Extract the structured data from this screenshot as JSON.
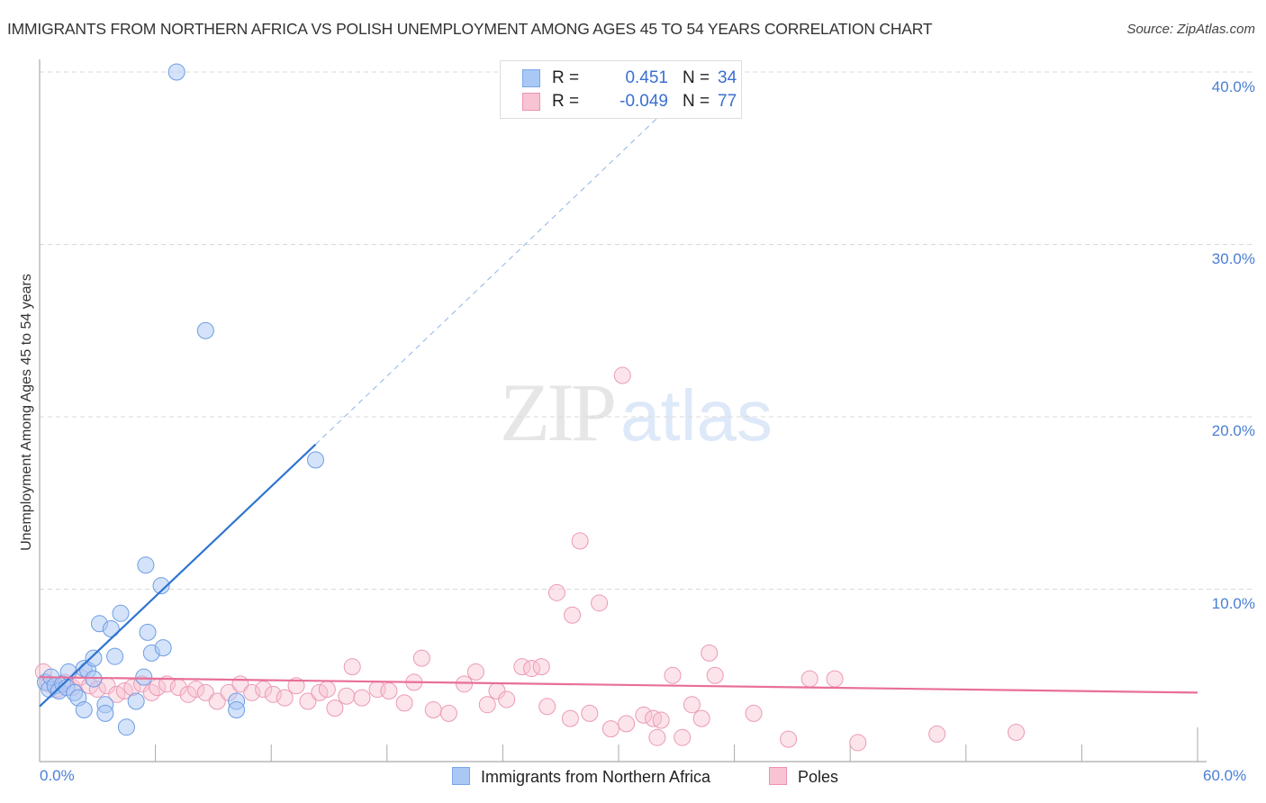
{
  "header": {
    "title": "IMMIGRANTS FROM NORTHERN AFRICA VS POLISH UNEMPLOYMENT AMONG AGES 45 TO 54 YEARS CORRELATION CHART",
    "source": "Source: ZipAtlas.com"
  },
  "watermark": {
    "zip": "ZIP",
    "atlas": "atlas"
  },
  "axes": {
    "ylabel": "Unemployment Among Ages 45 to 54 years",
    "y_ticks": [
      "40.0%",
      "30.0%",
      "20.0%",
      "10.0%"
    ],
    "x_ticks": [
      "0.0%",
      "60.0%"
    ]
  },
  "legend_box": {
    "rows": [
      {
        "r_label": "R =",
        "r_value": "0.451",
        "n_label": "N =",
        "n_value": "34",
        "color": "#a9c8f5",
        "border": "#7aa6e8"
      },
      {
        "r_label": "R =",
        "r_value": "-0.049",
        "n_label": "N =",
        "n_value": "77",
        "color": "#f8c3d3",
        "border": "#ec93b0"
      }
    ]
  },
  "bottom_legend": {
    "items": [
      {
        "label": "Immigrants from Northern Africa",
        "color": "#a9c8f5",
        "border": "#7aa6e8"
      },
      {
        "label": "Poles",
        "color": "#f8c3d3",
        "border": "#ec93b0"
      }
    ]
  },
  "colors": {
    "blue_line": "#2f74d0",
    "pink_line": "#e86f98",
    "blue_fill": "rgba(169,200,245,0.5)",
    "blue_stroke": "#6d9de3",
    "pink_fill": "rgba(248,195,211,0.45)",
    "pink_stroke": "#eb9ab5"
  },
  "chart_data": {
    "type": "scatter",
    "title": "IMMIGRANTS FROM NORTHERN AFRICA VS POLISH UNEMPLOYMENT AMONG AGES 45 TO 54 YEARS CORRELATION CHART",
    "xlabel": "",
    "ylabel": "Unemployment Among Ages 45 to 54 years",
    "xlim": [
      0,
      60
    ],
    "ylim": [
      0,
      40
    ],
    "grid": true,
    "legend_position": "top-center and bottom",
    "series": [
      {
        "name": "Immigrants from Northern Africa",
        "R": 0.451,
        "N": 34,
        "trend": {
          "x0": 0,
          "y0": 3.2,
          "x1": 14.3,
          "y1": 18.4,
          "dashed_to_x": 34.5,
          "dashed_to_y": 40.0
        },
        "points": [
          [
            0.3,
            4.6
          ],
          [
            0.5,
            4.2
          ],
          [
            0.6,
            4.9
          ],
          [
            0.8,
            4.4
          ],
          [
            1.0,
            4.1
          ],
          [
            1.2,
            4.5
          ],
          [
            1.4,
            4.3
          ],
          [
            1.5,
            5.2
          ],
          [
            1.8,
            4.0
          ],
          [
            2.0,
            3.7
          ],
          [
            2.3,
            5.4
          ],
          [
            2.5,
            5.3
          ],
          [
            2.8,
            4.8
          ],
          [
            2.3,
            3.0
          ],
          [
            2.8,
            6.0
          ],
          [
            3.1,
            8.0
          ],
          [
            3.4,
            3.3
          ],
          [
            3.4,
            2.8
          ],
          [
            3.7,
            7.7
          ],
          [
            3.9,
            6.1
          ],
          [
            4.2,
            8.6
          ],
          [
            4.5,
            2.0
          ],
          [
            5.0,
            3.5
          ],
          [
            5.4,
            4.9
          ],
          [
            5.5,
            11.4
          ],
          [
            5.6,
            7.5
          ],
          [
            5.8,
            6.3
          ],
          [
            6.3,
            10.2
          ],
          [
            6.4,
            6.6
          ],
          [
            7.1,
            40.0
          ],
          [
            8.6,
            25.0
          ],
          [
            10.2,
            3.5
          ],
          [
            10.2,
            3.0
          ],
          [
            14.3,
            17.5
          ]
        ]
      },
      {
        "name": "Poles",
        "R": -0.049,
        "N": 77,
        "trend": {
          "x0": 0,
          "y0": 4.9,
          "x1": 60,
          "y1": 4.0
        },
        "points": [
          [
            0.2,
            5.2
          ],
          [
            0.5,
            4.5
          ],
          [
            0.9,
            4.2
          ],
          [
            1.3,
            4.6
          ],
          [
            1.7,
            4.3
          ],
          [
            2.1,
            4.9
          ],
          [
            2.6,
            4.4
          ],
          [
            3.0,
            4.2
          ],
          [
            3.5,
            4.4
          ],
          [
            4.0,
            3.9
          ],
          [
            4.4,
            4.1
          ],
          [
            4.8,
            4.3
          ],
          [
            5.3,
            4.5
          ],
          [
            5.8,
            4.0
          ],
          [
            6.1,
            4.3
          ],
          [
            6.6,
            4.5
          ],
          [
            7.2,
            4.3
          ],
          [
            7.7,
            3.9
          ],
          [
            8.1,
            4.2
          ],
          [
            8.6,
            4.0
          ],
          [
            9.2,
            3.5
          ],
          [
            9.8,
            4.0
          ],
          [
            10.4,
            4.5
          ],
          [
            11.0,
            4.0
          ],
          [
            11.6,
            4.2
          ],
          [
            12.1,
            3.9
          ],
          [
            12.7,
            3.7
          ],
          [
            13.3,
            4.4
          ],
          [
            13.9,
            3.5
          ],
          [
            14.5,
            4.0
          ],
          [
            14.9,
            4.2
          ],
          [
            15.3,
            3.1
          ],
          [
            15.9,
            3.8
          ],
          [
            16.2,
            5.5
          ],
          [
            16.7,
            3.7
          ],
          [
            17.5,
            4.2
          ],
          [
            18.1,
            4.1
          ],
          [
            18.9,
            3.4
          ],
          [
            19.4,
            4.6
          ],
          [
            19.8,
            6.0
          ],
          [
            20.4,
            3.0
          ],
          [
            21.2,
            2.8
          ],
          [
            22.0,
            4.5
          ],
          [
            22.6,
            5.2
          ],
          [
            23.2,
            3.3
          ],
          [
            23.7,
            4.1
          ],
          [
            24.2,
            3.6
          ],
          [
            25.0,
            5.5
          ],
          [
            25.5,
            5.4
          ],
          [
            26.0,
            5.5
          ],
          [
            26.3,
            3.2
          ],
          [
            26.8,
            9.8
          ],
          [
            27.5,
            2.5
          ],
          [
            27.6,
            8.5
          ],
          [
            28.0,
            12.8
          ],
          [
            28.5,
            2.8
          ],
          [
            29.0,
            9.2
          ],
          [
            29.6,
            1.9
          ],
          [
            30.2,
            22.4
          ],
          [
            30.4,
            2.2
          ],
          [
            31.3,
            2.7
          ],
          [
            31.8,
            2.5
          ],
          [
            32.0,
            1.4
          ],
          [
            32.2,
            2.4
          ],
          [
            32.8,
            5.0
          ],
          [
            33.3,
            1.4
          ],
          [
            33.8,
            3.3
          ],
          [
            34.3,
            2.5
          ],
          [
            34.7,
            6.3
          ],
          [
            35.0,
            5.0
          ],
          [
            37.0,
            2.8
          ],
          [
            38.8,
            1.3
          ],
          [
            39.9,
            4.8
          ],
          [
            41.2,
            4.8
          ],
          [
            42.4,
            1.1
          ],
          [
            46.5,
            1.6
          ],
          [
            50.6,
            1.7
          ]
        ]
      }
    ]
  }
}
